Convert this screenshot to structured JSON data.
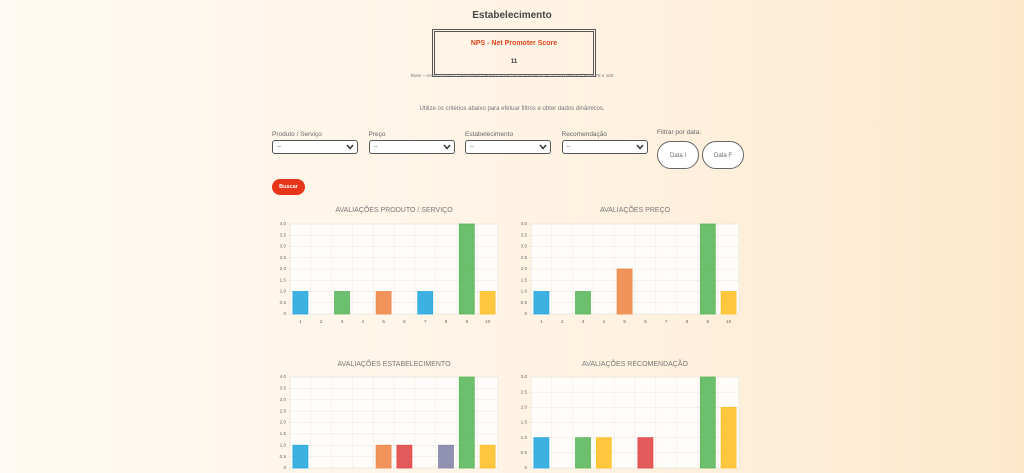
{
  "header": {
    "title": "Estabelecimento"
  },
  "nps": {
    "title": "NPS - Net Promoter Score",
    "value": 11,
    "scale": "Ruim – entre -100 e -1 / Razoável – entre 0 e 49 / Bom – entre 50 e 74 / Excelente – entre 75 e 100"
  },
  "instructions": "Utilize os critérios abaixo para efetuar filtros e obter dados dinâmicos.",
  "filters": [
    {
      "label": "Produto / Serviço",
      "value": "--"
    },
    {
      "label": "Preço",
      "value": "--"
    },
    {
      "label": "Estabelecimento",
      "value": "--"
    },
    {
      "label": "Recomendação",
      "value": "--"
    }
  ],
  "date_filter": {
    "label": "Filtrar por data:",
    "buttons": [
      "Data I",
      "Data F"
    ]
  },
  "search_button": "Buscar",
  "chart_data": [
    {
      "type": "bar",
      "title": "AVALIAÇÕES PRODUTO / SERVIÇO",
      "categories": [
        "1",
        "2",
        "3",
        "4",
        "5",
        "6",
        "7",
        "8",
        "9",
        "10"
      ],
      "values": [
        1,
        0,
        1,
        0,
        1,
        0,
        1,
        0,
        4,
        1
      ],
      "colors": [
        "#29a8e0",
        null,
        "#5cb85c",
        null,
        "#f0884a",
        null,
        "#29a8e0",
        null,
        "#5cb85c",
        "#ffc12a"
      ],
      "ylim": [
        0,
        4
      ],
      "yticks": [
        0,
        0.5,
        {
          "value": 1,
          "label": "1.0"
        },
        1.5,
        {
          "value": 2,
          "label": "2.0"
        },
        2.5,
        {
          "value": 3,
          "label": "3.0"
        },
        3.5,
        {
          "value": 4,
          "label": "4.0"
        }
      ],
      "grid": true
    },
    {
      "type": "bar",
      "title": "AVALIAÇÕES PREÇO",
      "categories": [
        "1",
        "2",
        "3",
        "4",
        "5",
        "6",
        "7",
        "8",
        "9",
        "10"
      ],
      "values": [
        1,
        0,
        1,
        0,
        2,
        0,
        0,
        0,
        4,
        1
      ],
      "colors": [
        "#29a8e0",
        null,
        "#5cb85c",
        null,
        "#f0884a",
        null,
        null,
        null,
        "#5cb85c",
        "#ffc12a"
      ],
      "ylim": [
        0,
        4
      ],
      "yticks": [
        0,
        0.5,
        {
          "value": 1,
          "label": "1.0"
        },
        1.5,
        {
          "value": 2,
          "label": "2.0"
        },
        2.5,
        {
          "value": 3,
          "label": "3.0"
        },
        3.5,
        {
          "value": 4,
          "label": "4.0"
        }
      ],
      "grid": true
    },
    {
      "type": "bar",
      "title": "AVALIAÇÕES ESTABELECIMENTO",
      "categories": [
        null,
        null,
        null,
        null,
        null,
        null,
        null,
        null,
        null,
        null
      ],
      "values": [
        1,
        0,
        0,
        0,
        1,
        1,
        0,
        1,
        4,
        1
      ],
      "colors": [
        "#29a8e0",
        null,
        null,
        null,
        "#f0884a",
        "#e04848",
        null,
        "#8585a8",
        "#5cb85c",
        "#ffc12a"
      ],
      "ylim": [
        0,
        4
      ],
      "yticks": [
        0,
        0.5,
        {
          "value": 1,
          "label": "1.0"
        },
        1.5,
        {
          "value": 2,
          "label": "2.0"
        },
        2.5,
        {
          "value": 3,
          "label": "3.0"
        },
        3.5,
        {
          "value": 4,
          "label": "4.0"
        }
      ],
      "grid": true
    },
    {
      "type": "bar",
      "title": "AVALIAÇÕES RECOMENDAÇÃO",
      "categories": [
        null,
        null,
        null,
        null,
        null,
        null,
        null,
        null,
        null,
        null
      ],
      "values": [
        1,
        0,
        1,
        1,
        0,
        1,
        0,
        0,
        3,
        2
      ],
      "colors": [
        "#29a8e0",
        null,
        "#5cb85c",
        "#ffc12a",
        null,
        "#e04848",
        null,
        null,
        "#5cb85c",
        "#ffc12a"
      ],
      "ylim": [
        0,
        3
      ],
      "yticks": [
        0,
        0.5,
        {
          "value": 1,
          "label": "1.0"
        },
        1.5,
        {
          "value": 2,
          "label": "2.0"
        },
        2.5,
        {
          "value": 3,
          "label": "3.0"
        }
      ],
      "grid": true
    }
  ]
}
